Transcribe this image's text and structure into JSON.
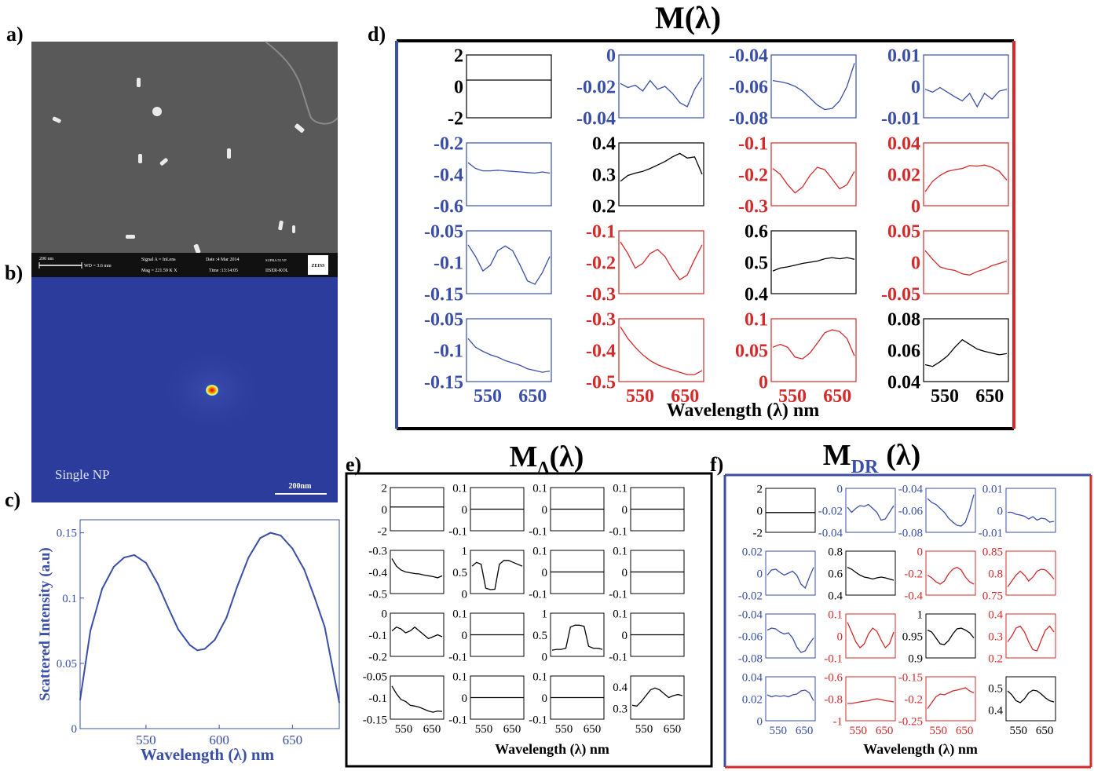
{
  "panel_labels": {
    "a": "a)",
    "b": "b)",
    "c": "c)",
    "d": "d)",
    "e": "e)",
    "f": "f)"
  },
  "colors": {
    "blue": "#3a4fa8",
    "red": "#d42a2a",
    "black": "#000000",
    "sem_bg": "#5a5a5a",
    "map_bg": "#2c3c9c"
  },
  "sem": {
    "bar_label": "200 nm",
    "wd": "WD = 3.6 mm",
    "signal": "Signal A = InLens",
    "mag": "Mag = 221.59 K X",
    "date": "Date :4 Mar 2014",
    "time": "Time :13:14:05",
    "instrument": "SUPRA 55 VP",
    "institute": "IISER-KOL",
    "brand": "ZEISS"
  },
  "intensity_map": {
    "label": "Single NP",
    "scale_label": "200nm"
  },
  "chart_data": [
    {
      "id": "c",
      "type": "line",
      "xlabel": "Wavelength (λ) nm",
      "ylabel": "Scattered Intensity (a.u)",
      "xlim": [
        505,
        682
      ],
      "ylim": [
        0,
        0.16
      ],
      "xticks": [
        "550",
        "600",
        "650"
      ],
      "yticks": [
        "0",
        "0.05",
        "0.1",
        "0.15"
      ],
      "x": [
        505,
        512,
        520,
        528,
        535,
        542,
        550,
        558,
        565,
        572,
        580,
        585,
        590,
        597,
        605,
        612,
        620,
        628,
        635,
        642,
        650,
        658,
        665,
        672,
        682
      ],
      "y": [
        0.022,
        0.075,
        0.107,
        0.124,
        0.131,
        0.133,
        0.127,
        0.111,
        0.093,
        0.076,
        0.064,
        0.06,
        0.061,
        0.068,
        0.085,
        0.108,
        0.131,
        0.146,
        0.15,
        0.148,
        0.138,
        0.122,
        0.101,
        0.078,
        0.02
      ]
    },
    {
      "id": "d",
      "type": "line",
      "title": "M(λ)",
      "xlabel": "Wavelength (λ) nm",
      "xticks": [
        "550",
        "650"
      ],
      "cells": [
        {
          "c": "black",
          "yt": [
            "2",
            "0",
            "-2"
          ],
          "flat": 0.6
        },
        {
          "c": "blue",
          "yt": [
            "0",
            "-0.02",
            "-0.04"
          ],
          "v": [
            0.45,
            0.52,
            0.48,
            0.58,
            0.4,
            0.55,
            0.5,
            0.62,
            0.78,
            0.85,
            0.55,
            0.35
          ]
        },
        {
          "c": "blue",
          "yt": [
            "-0.04",
            "-0.06",
            "-0.08"
          ],
          "v": [
            0.4,
            0.42,
            0.45,
            0.5,
            0.58,
            0.7,
            0.82,
            0.9,
            0.88,
            0.75,
            0.5,
            0.1
          ]
        },
        {
          "c": "blue",
          "yt": [
            "0.01",
            "0",
            "-0.01"
          ],
          "v": [
            0.55,
            0.6,
            0.52,
            0.6,
            0.68,
            0.75,
            0.62,
            0.85,
            0.62,
            0.72,
            0.58,
            0.55
          ]
        },
        {
          "c": "blue",
          "yt": [
            "-0.2",
            "-0.4",
            "-0.6"
          ],
          "v": [
            0.3,
            0.4,
            0.44,
            0.44,
            0.43,
            0.44,
            0.45,
            0.46,
            0.47,
            0.48,
            0.46,
            0.48
          ]
        },
        {
          "c": "black",
          "yt": [
            "0.4",
            "0.3",
            "0.2"
          ],
          "v": [
            0.62,
            0.52,
            0.48,
            0.45,
            0.4,
            0.34,
            0.28,
            0.2,
            0.14,
            0.22,
            0.2,
            0.5
          ]
        },
        {
          "c": "red",
          "yt": [
            "-0.1",
            "-0.2",
            "-0.3"
          ],
          "v": [
            0.4,
            0.5,
            0.68,
            0.82,
            0.72,
            0.52,
            0.38,
            0.42,
            0.58,
            0.75,
            0.68,
            0.45
          ]
        },
        {
          "c": "red",
          "yt": [
            "0.04",
            "0.02",
            "0"
          ],
          "v": [
            0.8,
            0.62,
            0.52,
            0.45,
            0.42,
            0.4,
            0.35,
            0.36,
            0.34,
            0.38,
            0.45,
            0.6
          ]
        },
        {
          "c": "blue",
          "yt": [
            "-0.05",
            "-0.1",
            "-0.15"
          ],
          "v": [
            0.2,
            0.4,
            0.65,
            0.55,
            0.3,
            0.22,
            0.3,
            0.55,
            0.82,
            0.88,
            0.68,
            0.4
          ]
        },
        {
          "c": "red",
          "yt": [
            "-0.1",
            "-0.2",
            "-0.3"
          ],
          "v": [
            0.15,
            0.35,
            0.6,
            0.52,
            0.35,
            0.28,
            0.4,
            0.62,
            0.8,
            0.72,
            0.45,
            0.2
          ]
        },
        {
          "c": "black",
          "yt": [
            "0.6",
            "0.5",
            "0.4"
          ],
          "v": [
            0.65,
            0.6,
            0.58,
            0.55,
            0.52,
            0.5,
            0.48,
            0.44,
            0.42,
            0.44,
            0.42,
            0.45
          ]
        },
        {
          "c": "red",
          "yt": [
            "0.05",
            "0",
            "-0.05"
          ],
          "v": [
            0.3,
            0.45,
            0.58,
            0.62,
            0.64,
            0.7,
            0.72,
            0.66,
            0.62,
            0.56,
            0.52,
            0.48
          ]
        },
        {
          "c": "blue",
          "yt": [
            "-0.05",
            "-0.1",
            "-0.15"
          ],
          "v": [
            0.3,
            0.45,
            0.52,
            0.58,
            0.62,
            0.68,
            0.72,
            0.76,
            0.82,
            0.85,
            0.88,
            0.86
          ]
        },
        {
          "c": "red",
          "yt": [
            "-0.3",
            "-0.4",
            "-0.5"
          ],
          "v": [
            0.1,
            0.3,
            0.45,
            0.58,
            0.68,
            0.75,
            0.8,
            0.84,
            0.88,
            0.92,
            0.92,
            0.85
          ]
        },
        {
          "c": "red",
          "yt": [
            "0.1",
            "0.05",
            "0"
          ],
          "v": [
            0.45,
            0.4,
            0.45,
            0.62,
            0.65,
            0.55,
            0.38,
            0.2,
            0.15,
            0.18,
            0.3,
            0.6
          ]
        },
        {
          "c": "black",
          "yt": [
            "0.08",
            "0.06",
            "0.04"
          ],
          "v": [
            0.75,
            0.78,
            0.7,
            0.6,
            0.45,
            0.32,
            0.4,
            0.48,
            0.52,
            0.55,
            0.58,
            0.56
          ]
        }
      ]
    },
    {
      "id": "e",
      "type": "line",
      "title": "M",
      "title_sub": "Δ",
      "title_tail": "(λ)",
      "xlabel": "Wavelength (λ) nm",
      "xticks": [
        "550",
        "650"
      ],
      "cells": [
        {
          "c": "black",
          "yt": [
            "2",
            "0",
            "-2"
          ],
          "flat": 0.55
        },
        {
          "c": "black",
          "yt": [
            "0.1",
            "0",
            "-0.1"
          ],
          "flat": 0.5
        },
        {
          "c": "black",
          "yt": [
            "0.1",
            "0",
            "-0.1"
          ],
          "flat": 0.5
        },
        {
          "c": "black",
          "yt": [
            "0.1",
            "0",
            "-0.1"
          ],
          "flat": 0.5
        },
        {
          "c": "black",
          "yt": [
            "-0.3",
            "-0.4",
            "-0.5"
          ],
          "v": [
            0.15,
            0.35,
            0.45,
            0.5,
            0.52,
            0.54,
            0.55,
            0.58,
            0.6,
            0.62,
            0.65,
            0.6
          ]
        },
        {
          "c": "black",
          "yt": [
            "1",
            "0.5",
            "0"
          ],
          "v": [
            0.35,
            0.25,
            0.3,
            0.92,
            0.96,
            0.95,
            0.3,
            0.2,
            0.2,
            0.25,
            0.3,
            0.35
          ]
        },
        {
          "c": "black",
          "yt": [
            "0.1",
            "0",
            "-0.1"
          ],
          "flat": 0.5
        },
        {
          "c": "black",
          "yt": [
            "0.1",
            "0",
            "-0.1"
          ],
          "flat": 0.5
        },
        {
          "c": "black",
          "yt": [
            "0",
            "-0.1",
            "-0.2"
          ],
          "v": [
            0.4,
            0.3,
            0.35,
            0.45,
            0.4,
            0.3,
            0.4,
            0.5,
            0.6,
            0.55,
            0.5,
            0.55
          ]
        },
        {
          "c": "black",
          "yt": [
            "0.1",
            "0",
            "-0.1"
          ],
          "flat": 0.5
        },
        {
          "c": "black",
          "yt": [
            "1",
            "0.5",
            "0"
          ],
          "v": [
            0.9,
            0.88,
            0.88,
            0.85,
            0.3,
            0.25,
            0.25,
            0.28,
            0.8,
            0.85,
            0.85,
            0.88
          ]
        },
        {
          "c": "black",
          "yt": [
            "0.1",
            "0",
            "-0.1"
          ],
          "flat": 0.5
        },
        {
          "c": "black",
          "yt": [
            "-0.05",
            "-0.1",
            "-0.15"
          ],
          "v": [
            0.2,
            0.4,
            0.55,
            0.6,
            0.7,
            0.72,
            0.75,
            0.8,
            0.85,
            0.88,
            0.85,
            0.86
          ]
        },
        {
          "c": "black",
          "yt": [
            "0.1",
            "0",
            "-0.1"
          ],
          "flat": 0.5
        },
        {
          "c": "black",
          "yt": [
            "0.1",
            "0",
            "-0.1"
          ],
          "flat": 0.5
        },
        {
          "c": "black",
          "yt": [
            "0.4",
            "0.3"
          ],
          "v": [
            0.7,
            0.72,
            0.6,
            0.45,
            0.3,
            0.25,
            0.3,
            0.4,
            0.5,
            0.45,
            0.42,
            0.45
          ]
        }
      ]
    },
    {
      "id": "f",
      "type": "line",
      "title": "M",
      "title_sub": "DR",
      "title_tail": "(λ)",
      "xlabel": "Wavelength (λ) nm",
      "xticks": [
        "550",
        "650"
      ],
      "cells": [
        {
          "c": "black",
          "yt": [
            "2",
            "0",
            "-2"
          ],
          "flat": 0.45
        },
        {
          "c": "blue",
          "yt": [
            "0",
            "-0.02",
            "-0.04"
          ],
          "v": [
            0.42,
            0.55,
            0.45,
            0.38,
            0.4,
            0.35,
            0.45,
            0.55,
            0.75,
            0.72,
            0.55,
            0.38
          ]
        },
        {
          "c": "blue",
          "yt": [
            "-0.04",
            "-0.06",
            "-0.08"
          ],
          "v": [
            0.2,
            0.3,
            0.35,
            0.45,
            0.55,
            0.7,
            0.8,
            0.88,
            0.9,
            0.8,
            0.5,
            0.1
          ]
        },
        {
          "c": "blue",
          "yt": [
            "0.01",
            "0",
            "-0.01"
          ],
          "v": [
            0.55,
            0.55,
            0.6,
            0.62,
            0.65,
            0.72,
            0.66,
            0.75,
            0.7,
            0.72,
            0.8,
            0.78
          ]
        },
        {
          "c": "blue",
          "yt": [
            "0.02",
            "0",
            "-0.02"
          ],
          "v": [
            0.55,
            0.42,
            0.4,
            0.48,
            0.55,
            0.5,
            0.45,
            0.55,
            0.78,
            0.88,
            0.6,
            0.35
          ]
        },
        {
          "c": "black",
          "yt": [
            "0.8",
            "0.6",
            "0.4"
          ],
          "v": [
            0.35,
            0.4,
            0.48,
            0.55,
            0.6,
            0.62,
            0.65,
            0.62,
            0.6,
            0.62,
            0.65,
            0.68
          ]
        },
        {
          "c": "red",
          "yt": [
            "0",
            "-0.2",
            "-0.4"
          ],
          "v": [
            0.55,
            0.62,
            0.72,
            0.78,
            0.7,
            0.52,
            0.4,
            0.35,
            0.42,
            0.6,
            0.72,
            0.78
          ]
        },
        {
          "c": "red",
          "yt": [
            "0.85",
            "0.8",
            "0.75"
          ],
          "v": [
            0.85,
            0.7,
            0.55,
            0.45,
            0.55,
            0.7,
            0.6,
            0.45,
            0.4,
            0.42,
            0.52,
            0.65
          ]
        },
        {
          "c": "blue",
          "yt": [
            "-0.04",
            "-0.06",
            "-0.08"
          ],
          "v": [
            0.35,
            0.3,
            0.32,
            0.4,
            0.45,
            0.42,
            0.55,
            0.78,
            0.92,
            0.88,
            0.7,
            0.55
          ]
        },
        {
          "c": "red",
          "yt": [
            "0.1",
            "0",
            "-0.1"
          ],
          "v": [
            0.15,
            0.4,
            0.65,
            0.8,
            0.7,
            0.45,
            0.3,
            0.38,
            0.6,
            0.8,
            0.7,
            0.4
          ]
        },
        {
          "c": "black",
          "yt": [
            "1",
            "0.95",
            "0.9"
          ],
          "v": [
            0.35,
            0.4,
            0.55,
            0.7,
            0.72,
            0.62,
            0.45,
            0.32,
            0.3,
            0.35,
            0.42,
            0.55
          ]
        },
        {
          "c": "red",
          "yt": [
            "0.4",
            "0.3",
            "0.2"
          ],
          "v": [
            0.65,
            0.5,
            0.3,
            0.25,
            0.4,
            0.65,
            0.85,
            0.88,
            0.6,
            0.35,
            0.25,
            0.4
          ]
        },
        {
          "c": "blue",
          "yt": [
            "0.04",
            "0.02",
            "0"
          ],
          "v": [
            0.4,
            0.45,
            0.42,
            0.44,
            0.42,
            0.45,
            0.4,
            0.38,
            0.3,
            0.28,
            0.35,
            0.55
          ]
        },
        {
          "c": "red",
          "yt": [
            "-0.6",
            "-0.8",
            "-1"
          ],
          "v": [
            0.62,
            0.62,
            0.6,
            0.58,
            0.56,
            0.55,
            0.52,
            0.5,
            0.52,
            0.55,
            0.56,
            0.58
          ]
        },
        {
          "c": "red",
          "yt": [
            "-0.15",
            "-0.2",
            "-0.25"
          ],
          "v": [
            0.75,
            0.6,
            0.45,
            0.38,
            0.4,
            0.35,
            0.3,
            0.28,
            0.25,
            0.22,
            0.3,
            0.35
          ]
        },
        {
          "c": "black",
          "yt": [
            "0.5",
            "0.4"
          ],
          "v": [
            0.3,
            0.4,
            0.55,
            0.6,
            0.5,
            0.35,
            0.28,
            0.3,
            0.38,
            0.48,
            0.55,
            0.58
          ]
        }
      ]
    }
  ]
}
